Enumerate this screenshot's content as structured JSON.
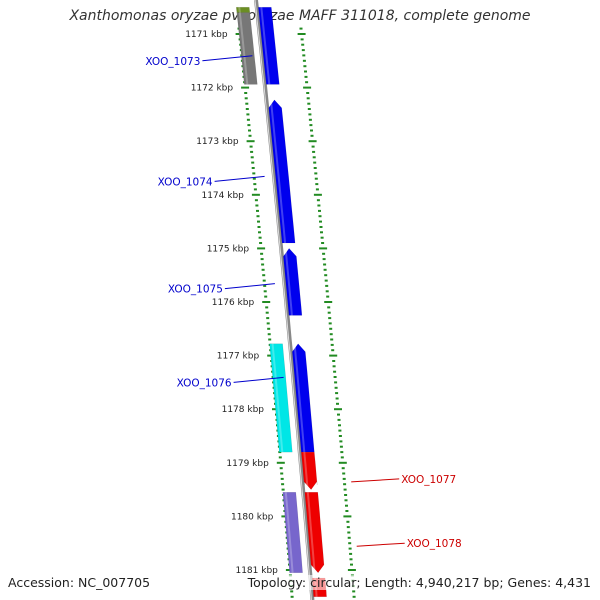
{
  "title": "Xanthomonas oryzae pv. oryzae MAFF 311018, complete genome",
  "accession_label": "Accession: NC_007705",
  "summary_label": "Topology: circular; Length: 4,940,217 bp; Genes: 4,431",
  "colors": {
    "forward": "#0000ee",
    "reverse": "#ee0000",
    "rna_forward": "#00e6e6",
    "rna_reverse": "#7766cc",
    "other": "#777777",
    "olive": "#6b8e23",
    "backbone": "#888888",
    "dots": "#228b22",
    "label_forward": "#0000cc",
    "label_reverse": "#cc0000"
  },
  "chart_data": {
    "type": "genome-map",
    "region_kbp": [
      1170.5,
      1181.5
    ],
    "ticks": [
      {
        "kbp": 1171,
        "label": "1171 kbp"
      },
      {
        "kbp": 1172,
        "label": "1172 kbp"
      },
      {
        "kbp": 1173,
        "label": "1173 kbp"
      },
      {
        "kbp": 1174,
        "label": "1174 kbp"
      },
      {
        "kbp": 1175,
        "label": "1175 kbp"
      },
      {
        "kbp": 1176,
        "label": "1176 kbp"
      },
      {
        "kbp": 1177,
        "label": "1177 kbp"
      },
      {
        "kbp": 1178,
        "label": "1178 kbp"
      },
      {
        "kbp": 1179,
        "label": "1179 kbp"
      },
      {
        "kbp": 1180,
        "label": "1180 kbp"
      },
      {
        "kbp": 1181,
        "label": "1181 kbp"
      }
    ],
    "features": [
      {
        "start": 1170.5,
        "end": 1170.6,
        "strand": "+",
        "kind": "olive",
        "lane": 2
      },
      {
        "start": 1170.6,
        "end": 1171.94,
        "strand": "+",
        "kind": "other",
        "lane": 2
      },
      {
        "start": 1170.5,
        "end": 1171.94,
        "strand": "+",
        "kind": "forward",
        "lane": 1
      },
      {
        "start": 1172.23,
        "end": 1174.9,
        "strand": "+",
        "kind": "forward",
        "lane": 1,
        "arrow": "start"
      },
      {
        "start": 1175.0,
        "end": 1176.25,
        "strand": "+",
        "kind": "forward",
        "lane": 1,
        "arrow": "start"
      },
      {
        "start": 1176.78,
        "end": 1178.8,
        "strand": "+",
        "kind": "rna_forward",
        "lane": 2
      },
      {
        "start": 1176.78,
        "end": 1178.8,
        "strand": "+",
        "kind": "forward",
        "lane": 1,
        "arrow": "start"
      },
      {
        "start": 1178.8,
        "end": 1179.5,
        "strand": "-",
        "kind": "reverse",
        "lane": 1,
        "arrow": "end"
      },
      {
        "start": 1179.55,
        "end": 1181.05,
        "strand": "-",
        "kind": "reverse",
        "lane": 1,
        "arrow": "end"
      },
      {
        "start": 1181.15,
        "end": 1181.5,
        "strand": "-",
        "kind": "reverse",
        "lane": 1
      },
      {
        "start": 1179.55,
        "end": 1181.05,
        "strand": "-",
        "kind": "rna_reverse",
        "lane": 2
      }
    ],
    "gene_labels": [
      {
        "name": "XOO_1073",
        "kbp": 1171.5,
        "strand": "+"
      },
      {
        "name": "XOO_1074",
        "kbp": 1173.75,
        "strand": "+"
      },
      {
        "name": "XOO_1075",
        "kbp": 1175.75,
        "strand": "+"
      },
      {
        "name": "XOO_1076",
        "kbp": 1177.5,
        "strand": "+"
      },
      {
        "name": "XOO_1077",
        "kbp": 1179.3,
        "strand": "-"
      },
      {
        "name": "XOO_1078",
        "kbp": 1180.5,
        "strand": "-"
      }
    ]
  }
}
